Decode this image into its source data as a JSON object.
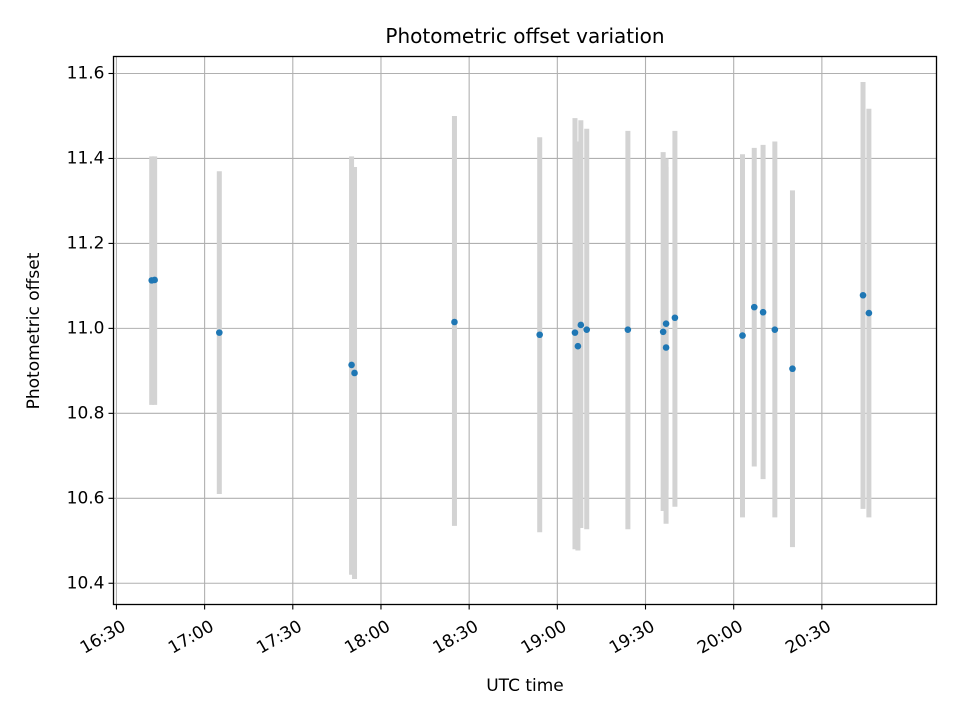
{
  "chart_data": {
    "type": "scatter",
    "title": "Photometric offset variation",
    "xlabel": "UTC time",
    "ylabel": "Photometric offset",
    "x_ticks": [
      "16:30",
      "17:00",
      "17:30",
      "18:00",
      "18:30",
      "19:00",
      "19:30",
      "20:00",
      "20:30"
    ],
    "y_ticks": [
      "10.4",
      "10.6",
      "10.8",
      "11.0",
      "11.2",
      "11.4",
      "11.6"
    ],
    "grid": true,
    "colors": {
      "point": "#1f77b4",
      "errorbar": "#d3d3d3",
      "grid": "#b0b0b0"
    },
    "xlim": [
      "16:29",
      "21:09"
    ],
    "ylim": [
      10.35,
      11.64
    ],
    "points": [
      {
        "x": "16:42",
        "y": 11.113,
        "ylo": 10.82,
        "yhi": 11.405
      },
      {
        "x": "16:43",
        "y": 11.114,
        "ylo": 10.82,
        "yhi": 11.405
      },
      {
        "x": "17:05",
        "y": 10.99,
        "ylo": 10.61,
        "yhi": 11.37
      },
      {
        "x": "17:50",
        "y": 10.914,
        "ylo": 10.42,
        "yhi": 11.405
      },
      {
        "x": "17:51",
        "y": 10.895,
        "ylo": 10.41,
        "yhi": 11.38
      },
      {
        "x": "18:25",
        "y": 11.015,
        "ylo": 10.535,
        "yhi": 11.5
      },
      {
        "x": "18:54",
        "y": 10.985,
        "ylo": 10.52,
        "yhi": 11.45
      },
      {
        "x": "19:06",
        "y": 10.99,
        "ylo": 10.48,
        "yhi": 11.495
      },
      {
        "x": "19:07",
        "y": 10.958,
        "ylo": 10.477,
        "yhi": 11.44
      },
      {
        "x": "19:08",
        "y": 11.008,
        "ylo": 10.53,
        "yhi": 11.49
      },
      {
        "x": "19:10",
        "y": 10.997,
        "ylo": 10.527,
        "yhi": 11.47
      },
      {
        "x": "19:24",
        "y": 10.997,
        "ylo": 10.527,
        "yhi": 11.465
      },
      {
        "x": "19:36",
        "y": 10.992,
        "ylo": 10.57,
        "yhi": 11.415
      },
      {
        "x": "19:37",
        "y": 10.955,
        "ylo": 10.54,
        "yhi": 11.38
      },
      {
        "x": "19:37",
        "y": 11.011,
        "ylo": 10.62,
        "yhi": 11.4
      },
      {
        "x": "19:40",
        "y": 11.025,
        "ylo": 10.58,
        "yhi": 11.465
      },
      {
        "x": "20:03",
        "y": 10.983,
        "ylo": 10.555,
        "yhi": 11.41
      },
      {
        "x": "20:07",
        "y": 11.05,
        "ylo": 10.675,
        "yhi": 11.425
      },
      {
        "x": "20:10",
        "y": 11.038,
        "ylo": 10.645,
        "yhi": 11.432
      },
      {
        "x": "20:14",
        "y": 10.997,
        "ylo": 10.555,
        "yhi": 11.44
      },
      {
        "x": "20:20",
        "y": 10.905,
        "ylo": 10.485,
        "yhi": 11.325
      },
      {
        "x": "20:44",
        "y": 11.078,
        "ylo": 10.575,
        "yhi": 11.58
      },
      {
        "x": "20:46",
        "y": 11.036,
        "ylo": 10.555,
        "yhi": 11.517
      }
    ]
  }
}
